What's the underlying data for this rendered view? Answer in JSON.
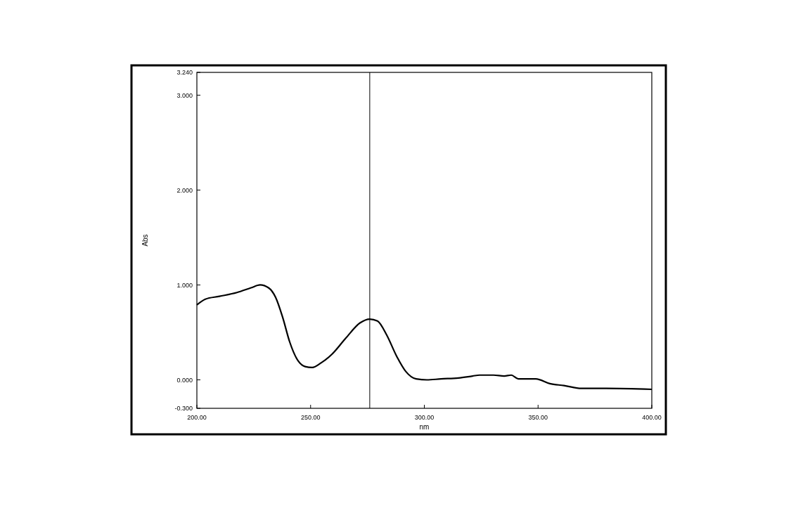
{
  "chart_data": {
    "type": "line",
    "xlabel": "nm",
    "ylabel": "Abs",
    "xlim": [
      200,
      400
    ],
    "ylim": [
      -0.3,
      3.24
    ],
    "xticks": [
      {
        "value": 200,
        "label": "200.00"
      },
      {
        "value": 250,
        "label": "250.00"
      },
      {
        "value": 300,
        "label": "300.00"
      },
      {
        "value": 350,
        "label": "350.00"
      },
      {
        "value": 400,
        "label": "400.00"
      }
    ],
    "yticks": [
      {
        "value": -0.3,
        "label": "-0.300"
      },
      {
        "value": 0,
        "label": "0.000"
      },
      {
        "value": 1,
        "label": "1.000"
      },
      {
        "value": 2,
        "label": "2.000"
      },
      {
        "value": 3,
        "label": "3.000"
      },
      {
        "value": 3.24,
        "label": "3.240"
      }
    ],
    "grid": false,
    "marker": "none",
    "line_style": "solid",
    "ref_lines": [
      {
        "axis": "x",
        "value": 276,
        "color": "#000000"
      }
    ],
    "series": [
      {
        "color": "#000000",
        "x": [
          200,
          203.7,
          209.9,
          217.6,
          223.8,
          227.8,
          231.5,
          234.6,
          237.7,
          240.8,
          244.5,
          247.6,
          250.7,
          254.7,
          259.4,
          265.5,
          271.7,
          276,
          279.4,
          283.5,
          287.8,
          291.8,
          296.4,
          301.1,
          307.3,
          315,
          321.2,
          324.3,
          330.4,
          335.1,
          338.2,
          341.3,
          349,
          355.2,
          361.4,
          369.1,
          380,
          400
        ],
        "values": [
          0.79,
          0.85,
          0.88,
          0.92,
          0.97,
          1.0,
          0.97,
          0.87,
          0.66,
          0.4,
          0.2,
          0.14,
          0.13,
          0.18,
          0.27,
          0.44,
          0.6,
          0.64,
          0.62,
          0.47,
          0.25,
          0.09,
          0.01,
          0.0,
          0.01,
          0.02,
          0.04,
          0.05,
          0.05,
          0.04,
          0.05,
          0.01,
          0.01,
          -0.04,
          -0.06,
          -0.09,
          -0.09,
          -0.1
        ]
      }
    ]
  }
}
